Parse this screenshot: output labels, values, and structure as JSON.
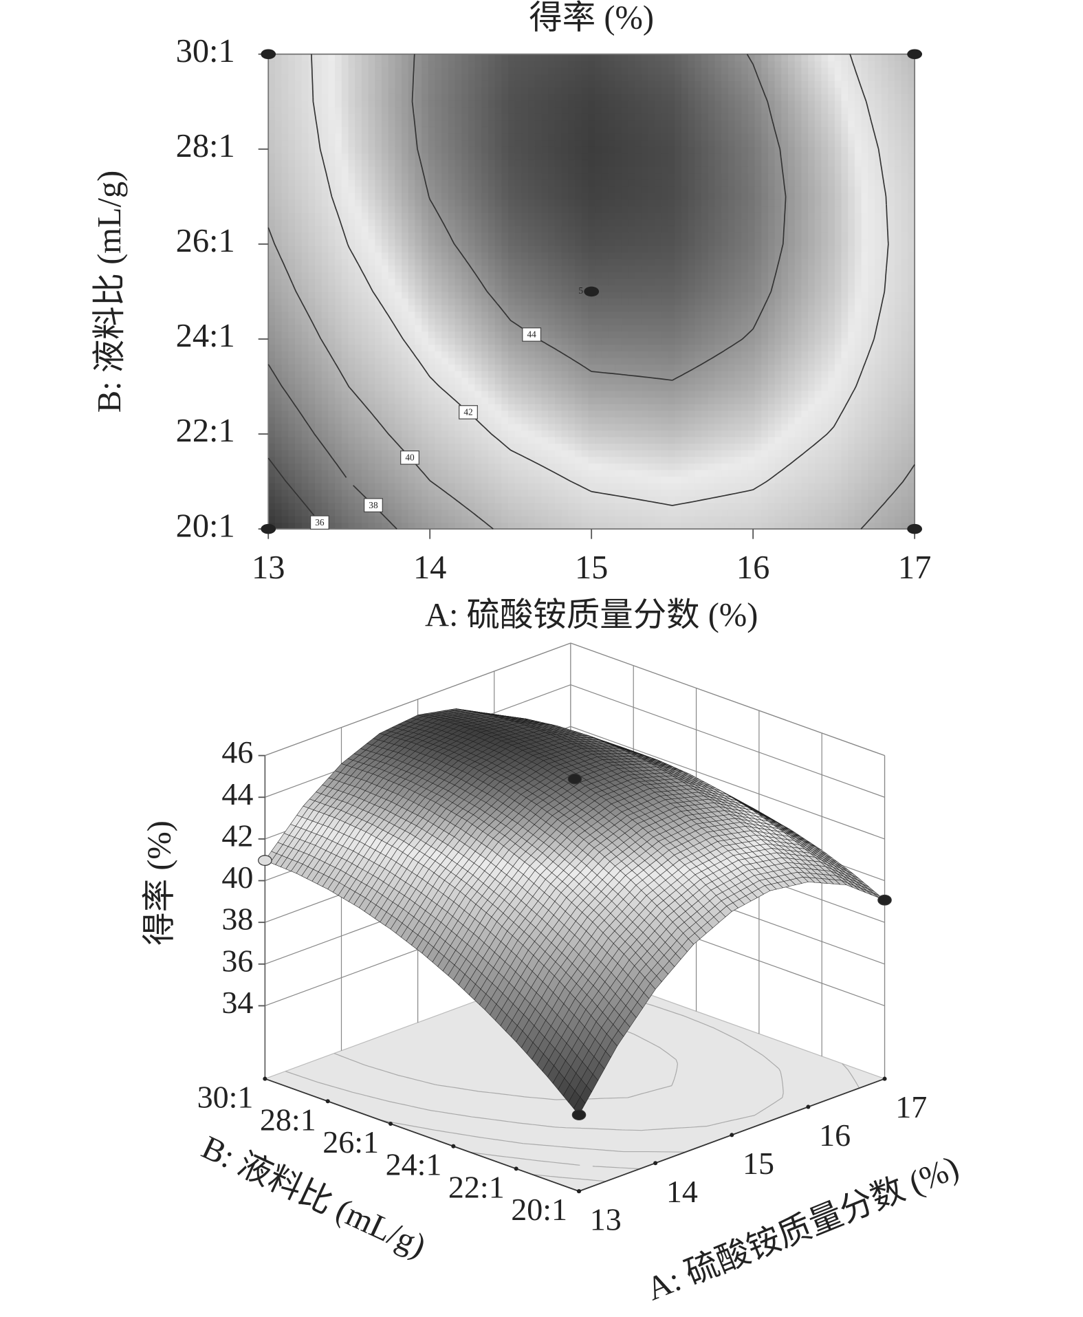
{
  "chart_data": [
    {
      "type": "contour",
      "title": "得率 (%)",
      "x_label": "A: 硫酸铵质量分数 (%)",
      "y_label": "B: 液料比 (mL/g)",
      "x": [
        13,
        13.5,
        14,
        14.5,
        15,
        15.5,
        16,
        16.5,
        17
      ],
      "y": [
        20,
        21,
        22,
        23,
        24,
        25,
        26,
        27,
        28,
        29,
        30
      ],
      "z": [
        [
          34.16,
          36.79,
          38.84,
          40.32,
          41.22,
          41.54,
          41.29,
          40.47,
          39.07
        ],
        [
          35.44,
          38.0,
          39.98,
          41.38,
          42.21,
          42.47,
          42.15,
          41.26,
          39.79
        ],
        [
          36.58,
          39.07,
          40.98,
          42.32,
          43.08,
          43.27,
          42.88,
          41.92,
          40.38
        ],
        [
          37.59,
          40.01,
          41.85,
          43.12,
          43.81,
          43.93,
          43.47,
          42.44,
          40.83
        ],
        [
          38.47,
          40.82,
          42.59,
          43.79,
          44.41,
          44.46,
          43.93,
          42.83,
          41.16
        ],
        [
          39.22,
          41.5,
          43.2,
          44.33,
          44.88,
          44.86,
          44.26,
          43.09,
          41.35
        ],
        [
          39.83,
          42.04,
          43.68,
          44.74,
          45.22,
          45.13,
          44.46,
          43.22,
          41.41
        ],
        [
          40.32,
          42.46,
          44.02,
          45.01,
          45.42,
          45.26,
          44.53,
          43.22,
          41.33
        ],
        [
          40.67,
          42.74,
          44.23,
          45.15,
          45.5,
          45.27,
          44.46,
          43.08,
          41.13
        ],
        [
          40.89,
          42.89,
          44.31,
          45.16,
          45.44,
          45.14,
          44.26,
          42.81,
          40.79
        ],
        [
          40.97,
          42.9,
          44.26,
          45.04,
          45.25,
          44.88,
          43.93,
          42.42,
          40.32
        ]
      ],
      "xlim": [
        13,
        17
      ],
      "ylim": [
        20,
        30
      ],
      "xticks": [
        13,
        14,
        15,
        16,
        17
      ],
      "yticks": [
        {
          "value": 20,
          "label": "20:1"
        },
        {
          "value": 22,
          "label": "22:1"
        },
        {
          "value": 24,
          "label": "24:1"
        },
        {
          "value": 26,
          "label": "26:1"
        },
        {
          "value": 28,
          "label": "28:1"
        },
        {
          "value": 30,
          "label": "30:1"
        }
      ],
      "contour_levels": [
        36,
        38,
        40,
        42,
        44
      ],
      "points": {
        "x": [
          13,
          13,
          17,
          17,
          15
        ],
        "y": [
          20,
          30,
          20,
          30,
          25
        ],
        "labels": [
          null,
          null,
          null,
          null,
          "5"
        ]
      }
    },
    {
      "type": "surface3d",
      "z_label": "得率 (%)",
      "x_label": "A: 硫酸铵质量分数 (%)",
      "y_label": "B: 液料比 (mL/g)",
      "xlim": [
        13,
        17
      ],
      "ylim": [
        20,
        30
      ],
      "zlim": [
        30.5,
        46
      ],
      "xticks": [
        13,
        14,
        15,
        16,
        17
      ],
      "yticks": [
        {
          "value": 20,
          "label": "20:1"
        },
        {
          "value": 22,
          "label": "22:1"
        },
        {
          "value": 24,
          "label": "24:1"
        },
        {
          "value": 26,
          "label": "26:1"
        },
        {
          "value": 28,
          "label": "28:1"
        },
        {
          "value": 30,
          "label": "30:1"
        }
      ],
      "zticks": [
        34,
        36,
        38,
        40,
        42,
        44,
        46
      ]
    }
  ]
}
